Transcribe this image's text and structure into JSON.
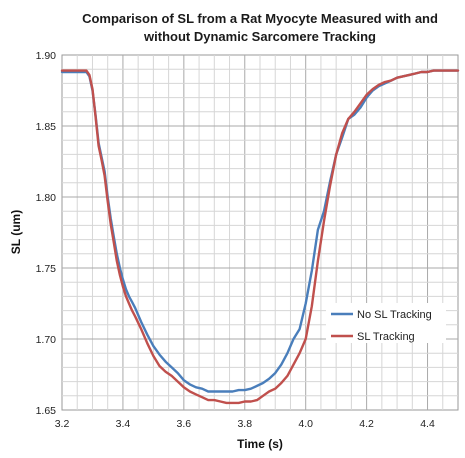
{
  "chart_data": {
    "type": "line",
    "title_line1": "Comparison of SL from a Rat Myocyte Measured with and",
    "title_line2": "without Dynamic Sarcomere Tracking",
    "xlabel": "Time (s)",
    "ylabel": "SL (um)",
    "xlim": [
      3.2,
      4.5
    ],
    "ylim": [
      1.65,
      1.9
    ],
    "x_ticks": [
      "3.2",
      "3.4",
      "3.6",
      "3.8",
      "4.0",
      "4.2",
      "4.4"
    ],
    "y_ticks": [
      "1.65",
      "1.70",
      "1.75",
      "1.80",
      "1.85",
      "1.90"
    ],
    "grid": true,
    "legend_position": "right, lower-middle",
    "series": [
      {
        "name": "No SL Tracking",
        "color": "#4a7ebb",
        "x": [
          3.2,
          3.22,
          3.24,
          3.26,
          3.28,
          3.29,
          3.3,
          3.31,
          3.32,
          3.33,
          3.34,
          3.35,
          3.36,
          3.37,
          3.38,
          3.39,
          3.4,
          3.41,
          3.42,
          3.43,
          3.44,
          3.46,
          3.48,
          3.5,
          3.52,
          3.54,
          3.56,
          3.58,
          3.6,
          3.62,
          3.64,
          3.66,
          3.68,
          3.7,
          3.72,
          3.74,
          3.76,
          3.78,
          3.8,
          3.82,
          3.84,
          3.86,
          3.88,
          3.9,
          3.92,
          3.94,
          3.96,
          3.98,
          4.0,
          4.02,
          4.04,
          4.06,
          4.08,
          4.1,
          4.12,
          4.14,
          4.16,
          4.18,
          4.2,
          4.22,
          4.24,
          4.26,
          4.28,
          4.3,
          4.32,
          4.34,
          4.36,
          4.38,
          4.4,
          4.42,
          4.44,
          4.46,
          4.48,
          4.5
        ],
        "values": [
          1.888,
          1.888,
          1.888,
          1.888,
          1.888,
          1.885,
          1.875,
          1.858,
          1.838,
          1.828,
          1.818,
          1.8,
          1.785,
          1.772,
          1.76,
          1.75,
          1.742,
          1.735,
          1.73,
          1.726,
          1.722,
          1.712,
          1.703,
          1.695,
          1.689,
          1.684,
          1.68,
          1.676,
          1.671,
          1.668,
          1.666,
          1.665,
          1.663,
          1.663,
          1.663,
          1.663,
          1.663,
          1.664,
          1.664,
          1.665,
          1.667,
          1.669,
          1.672,
          1.676,
          1.682,
          1.69,
          1.7,
          1.707,
          1.725,
          1.748,
          1.777,
          1.79,
          1.811,
          1.83,
          1.842,
          1.855,
          1.858,
          1.863,
          1.87,
          1.875,
          1.878,
          1.88,
          1.882,
          1.884,
          1.885,
          1.886,
          1.887,
          1.888,
          1.888,
          1.889,
          1.889,
          1.889,
          1.889,
          1.889
        ]
      },
      {
        "name": "SL Tracking",
        "color": "#c0504d",
        "x": [
          3.2,
          3.22,
          3.24,
          3.26,
          3.28,
          3.29,
          3.3,
          3.31,
          3.32,
          3.33,
          3.34,
          3.35,
          3.36,
          3.37,
          3.38,
          3.39,
          3.4,
          3.41,
          3.42,
          3.43,
          3.44,
          3.46,
          3.48,
          3.5,
          3.52,
          3.54,
          3.56,
          3.58,
          3.6,
          3.62,
          3.64,
          3.66,
          3.68,
          3.7,
          3.72,
          3.74,
          3.76,
          3.78,
          3.8,
          3.82,
          3.84,
          3.86,
          3.88,
          3.9,
          3.92,
          3.94,
          3.96,
          3.98,
          4.0,
          4.02,
          4.04,
          4.06,
          4.08,
          4.1,
          4.12,
          4.14,
          4.16,
          4.18,
          4.2,
          4.22,
          4.24,
          4.26,
          4.28,
          4.3,
          4.32,
          4.34,
          4.36,
          4.38,
          4.4,
          4.42,
          4.44,
          4.46,
          4.48,
          4.5
        ],
        "values": [
          1.889,
          1.889,
          1.889,
          1.889,
          1.889,
          1.886,
          1.876,
          1.857,
          1.836,
          1.826,
          1.815,
          1.797,
          1.781,
          1.768,
          1.755,
          1.745,
          1.737,
          1.73,
          1.725,
          1.72,
          1.716,
          1.707,
          1.697,
          1.688,
          1.681,
          1.677,
          1.674,
          1.67,
          1.666,
          1.663,
          1.661,
          1.659,
          1.657,
          1.657,
          1.656,
          1.655,
          1.655,
          1.655,
          1.656,
          1.656,
          1.657,
          1.66,
          1.663,
          1.665,
          1.669,
          1.674,
          1.682,
          1.69,
          1.7,
          1.723,
          1.755,
          1.783,
          1.808,
          1.83,
          1.845,
          1.855,
          1.86,
          1.866,
          1.872,
          1.876,
          1.879,
          1.881,
          1.882,
          1.884,
          1.885,
          1.886,
          1.887,
          1.888,
          1.888,
          1.889,
          1.889,
          1.889,
          1.889,
          1.889
        ]
      }
    ]
  }
}
